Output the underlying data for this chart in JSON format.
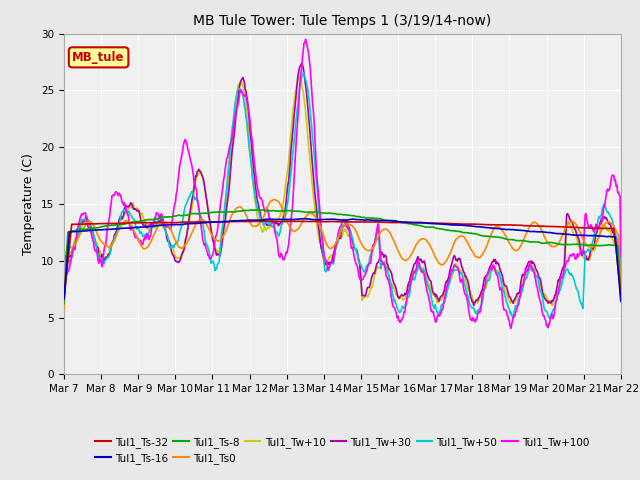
{
  "title": "MB Tule Tower: Tule Temps 1 (3/19/14-now)",
  "ylabel": "Temperature (C)",
  "ylim": [
    0,
    30
  ],
  "yticks": [
    0,
    5,
    10,
    15,
    20,
    25,
    30
  ],
  "x_labels": [
    "Mar 7",
    "Mar 8",
    "Mar 9",
    "Mar 10",
    "Mar 11",
    "Mar 12",
    "Mar 13",
    "Mar 14",
    "Mar 15",
    "Mar 16",
    "Mar 17",
    "Mar 18",
    "Mar 19",
    "Mar 20",
    "Mar 21",
    "Mar 22"
  ],
  "series": {
    "Tul1_Ts-32": {
      "color": "#cc0000"
    },
    "Tul1_Ts-16": {
      "color": "#0000cc"
    },
    "Tul1_Ts-8": {
      "color": "#00aa00"
    },
    "Tul1_Ts0": {
      "color": "#ff8800"
    },
    "Tul1_Tw+10": {
      "color": "#cccc00"
    },
    "Tul1_Tw+30": {
      "color": "#aa00aa"
    },
    "Tul1_Tw+50": {
      "color": "#00cccc"
    },
    "Tul1_Tw+100": {
      "color": "#ff00ff"
    }
  },
  "legend_order": [
    "Tul1_Ts-32",
    "Tul1_Ts-16",
    "Tul1_Ts-8",
    "Tul1_Ts0",
    "Tul1_Tw+10",
    "Tul1_Tw+30",
    "Tul1_Tw+50",
    "Tul1_Tw+100"
  ],
  "legend_box": {
    "label": "MB_tule",
    "facecolor": "#ffff99",
    "edgecolor": "#cc0000",
    "textcolor": "#cc0000"
  },
  "background_color": "#e8e8e8",
  "plot_bg": "#f0f0f0",
  "grid_color": "#ffffff",
  "lw": 1.2
}
